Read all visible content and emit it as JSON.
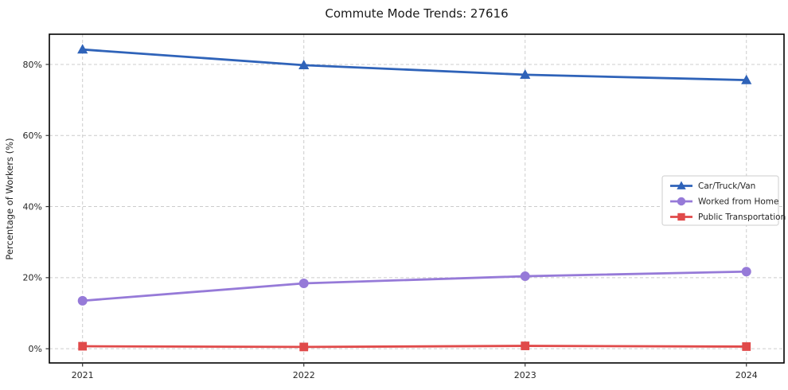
{
  "chart_data": {
    "type": "line",
    "title": "Commute Mode Trends: 27616",
    "xlabel": "",
    "ylabel": "Percentage of Workers (%)",
    "x": [
      2021,
      2022,
      2023,
      2024
    ],
    "series": [
      {
        "name": "Car/Truck/Van",
        "values": [
          84.2,
          79.8,
          77.1,
          75.6
        ],
        "color": "#2f63b9",
        "marker": "triangle"
      },
      {
        "name": "Worked from Home",
        "values": [
          13.5,
          18.4,
          20.4,
          21.7
        ],
        "color": "#967ad8",
        "marker": "circle"
      },
      {
        "name": "Public Transportation",
        "values": [
          0.7,
          0.5,
          0.8,
          0.6
        ],
        "color": "#e04a4a",
        "marker": "square"
      }
    ],
    "yticks": [
      0,
      20,
      40,
      60,
      80
    ],
    "ytick_labels": [
      "0%",
      "20%",
      "40%",
      "60%",
      "80%"
    ],
    "xtick_labels": [
      "2021",
      "2022",
      "2023",
      "2024"
    ],
    "ylim": [
      -4,
      88.5
    ],
    "xlim": [
      2020.85,
      2024.17
    ],
    "grid": true,
    "grid_color": "#cccccc",
    "frame_color": "#000000",
    "legend_position": "center right",
    "legend_border_color": "#cccccc"
  }
}
